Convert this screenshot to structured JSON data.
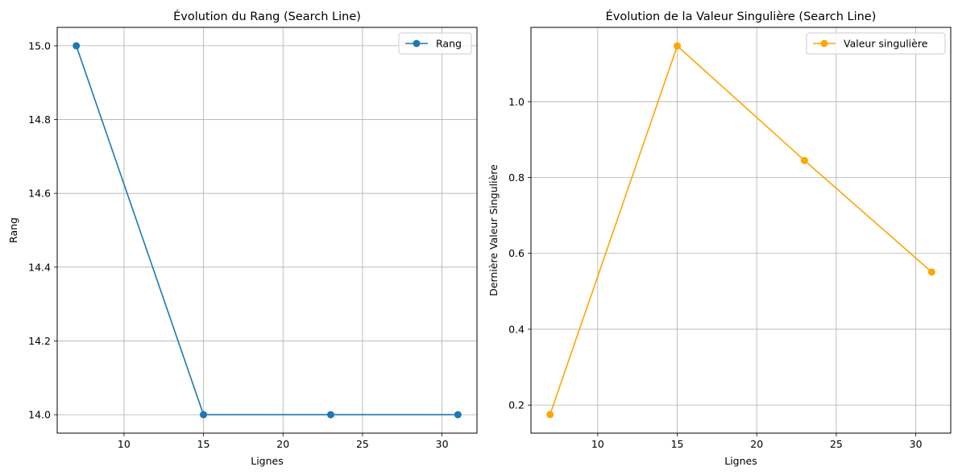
{
  "chart_data": [
    {
      "type": "line",
      "title": "Évolution du Rang (Search Line)",
      "xlabel": "Lignes",
      "ylabel": "Rang",
      "x": [
        7,
        15,
        23,
        31
      ],
      "series": [
        {
          "name": "Rang",
          "values": [
            15.0,
            14.0,
            14.0,
            14.0
          ],
          "color": "#1f77b4"
        }
      ],
      "xlim": [
        5.8,
        32.2
      ],
      "ylim": [
        13.95,
        15.05
      ],
      "xticks": [
        10,
        15,
        20,
        25,
        30
      ],
      "yticks": [
        14.0,
        14.2,
        14.4,
        14.6,
        14.8,
        15.0
      ],
      "xtick_labels": [
        "10",
        "15",
        "20",
        "25",
        "30"
      ],
      "ytick_labels": [
        "14.0",
        "14.2",
        "14.4",
        "14.6",
        "14.8",
        "15.0"
      ],
      "grid": true,
      "legend": "top-right"
    },
    {
      "type": "line",
      "title": "Évolution de la Valeur Singulière (Search Line)",
      "xlabel": "Lignes",
      "ylabel": "Dernière Valeur Singulière",
      "x": [
        7,
        15,
        23,
        31
      ],
      "series": [
        {
          "name": "Valeur singulière",
          "values": [
            0.175,
            1.147,
            0.845,
            0.551
          ],
          "color": "#ffa500"
        }
      ],
      "xlim": [
        5.8,
        32.2
      ],
      "ylim": [
        0.126,
        1.196
      ],
      "xticks": [
        10,
        15,
        20,
        25,
        30
      ],
      "yticks": [
        0.2,
        0.4,
        0.6,
        0.8,
        1.0
      ],
      "xtick_labels": [
        "10",
        "15",
        "20",
        "25",
        "30"
      ],
      "ytick_labels": [
        "0.2",
        "0.4",
        "0.6",
        "0.8",
        "1.0"
      ],
      "grid": true,
      "legend": "top-right"
    }
  ]
}
